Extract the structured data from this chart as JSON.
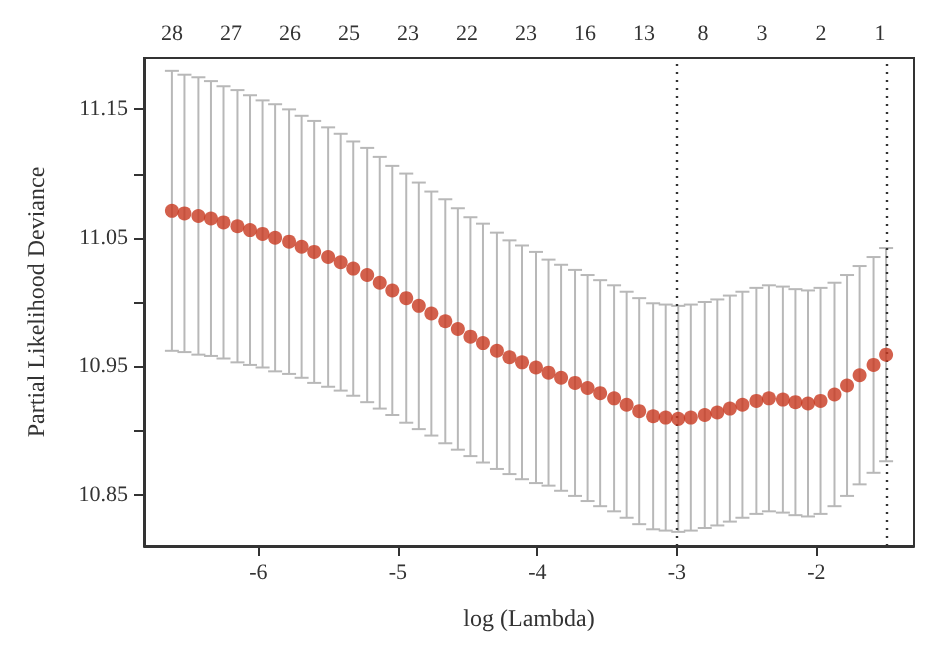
{
  "chart_data": {
    "type": "scatter",
    "xlabel": "log (Lambda)",
    "ylabel": "Partial Likelihood Deviance",
    "marker": "circle",
    "color": "#c8381f",
    "x": [
      -6.62,
      -6.53,
      -6.43,
      -6.34,
      -6.25,
      -6.15,
      -6.06,
      -5.97,
      -5.88,
      -5.78,
      -5.69,
      -5.6,
      -5.5,
      -5.41,
      -5.32,
      -5.22,
      -5.13,
      -5.04,
      -4.94,
      -4.85,
      -4.76,
      -4.66,
      -4.57,
      -4.48,
      -4.39,
      -4.29,
      -4.2,
      -4.11,
      -4.01,
      -3.92,
      -3.83,
      -3.73,
      -3.64,
      -3.55,
      -3.45,
      -3.36,
      -3.27,
      -3.17,
      -3.08,
      -2.99,
      -2.9,
      -2.8,
      -2.71,
      -2.62,
      -2.53,
      -2.43,
      -2.34,
      -2.24,
      -2.15,
      -2.06,
      -1.97,
      -1.87,
      -1.78,
      -1.69,
      -1.59,
      -1.5
    ],
    "values": [
      11.071,
      11.069,
      11.067,
      11.065,
      11.062,
      11.059,
      11.056,
      11.053,
      11.05,
      11.047,
      11.043,
      11.039,
      11.035,
      11.031,
      11.026,
      11.021,
      11.015,
      11.009,
      11.003,
      10.997,
      10.991,
      10.985,
      10.979,
      10.973,
      10.968,
      10.962,
      10.957,
      10.953,
      10.949,
      10.945,
      10.941,
      10.937,
      10.933,
      10.929,
      10.925,
      10.92,
      10.915,
      10.911,
      10.91,
      10.909,
      10.91,
      10.912,
      10.914,
      10.917,
      10.92,
      10.923,
      10.925,
      10.924,
      10.922,
      10.921,
      10.923,
      10.928,
      10.935,
      10.943,
      10.951,
      10.959
    ],
    "errors": [
      0.109,
      0.108,
      0.108,
      0.107,
      0.106,
      0.106,
      0.105,
      0.104,
      0.104,
      0.103,
      0.102,
      0.102,
      0.101,
      0.1,
      0.099,
      0.099,
      0.098,
      0.097,
      0.097,
      0.096,
      0.095,
      0.095,
      0.094,
      0.093,
      0.093,
      0.092,
      0.091,
      0.091,
      0.09,
      0.088,
      0.088,
      0.088,
      0.088,
      0.088,
      0.088,
      0.088,
      0.088,
      0.088,
      0.088,
      0.088,
      0.088,
      0.088,
      0.088,
      0.088,
      0.088,
      0.088,
      0.088,
      0.088,
      0.088,
      0.088,
      0.088,
      0.087,
      0.086,
      0.085,
      0.084,
      0.083
    ],
    "xlim": [
      -6.82,
      -1.3
    ],
    "xticks": [
      -6,
      -5,
      -4,
      -3,
      -2
    ],
    "annotations": [
      "28",
      "27",
      "26",
      "25",
      "23",
      "22",
      "23",
      "16",
      "13",
      "8",
      "3",
      "2",
      "1"
    ],
    "ylim": [
      10.81,
      11.19
    ],
    "yticks": [
      {
        "value": 10.85,
        "label": "10.85"
      },
      {
        "value": 10.9,
        "label": null
      },
      {
        "value": 10.95,
        "label": "10.95"
      },
      {
        "value": 11.0,
        "label": null
      },
      {
        "value": 11.05,
        "label": "11.05"
      },
      {
        "value": 11.1,
        "label": null
      },
      {
        "value": 11.15,
        "label": "11.15"
      }
    ],
    "ref_lines": [
      {
        "axis": "x",
        "value": -3.0,
        "line_style": "dotted",
        "color": "#333333"
      },
      {
        "axis": "x",
        "value": -1.5,
        "line_style": "dotted",
        "color": "#333333"
      }
    ],
    "grid": false
  }
}
